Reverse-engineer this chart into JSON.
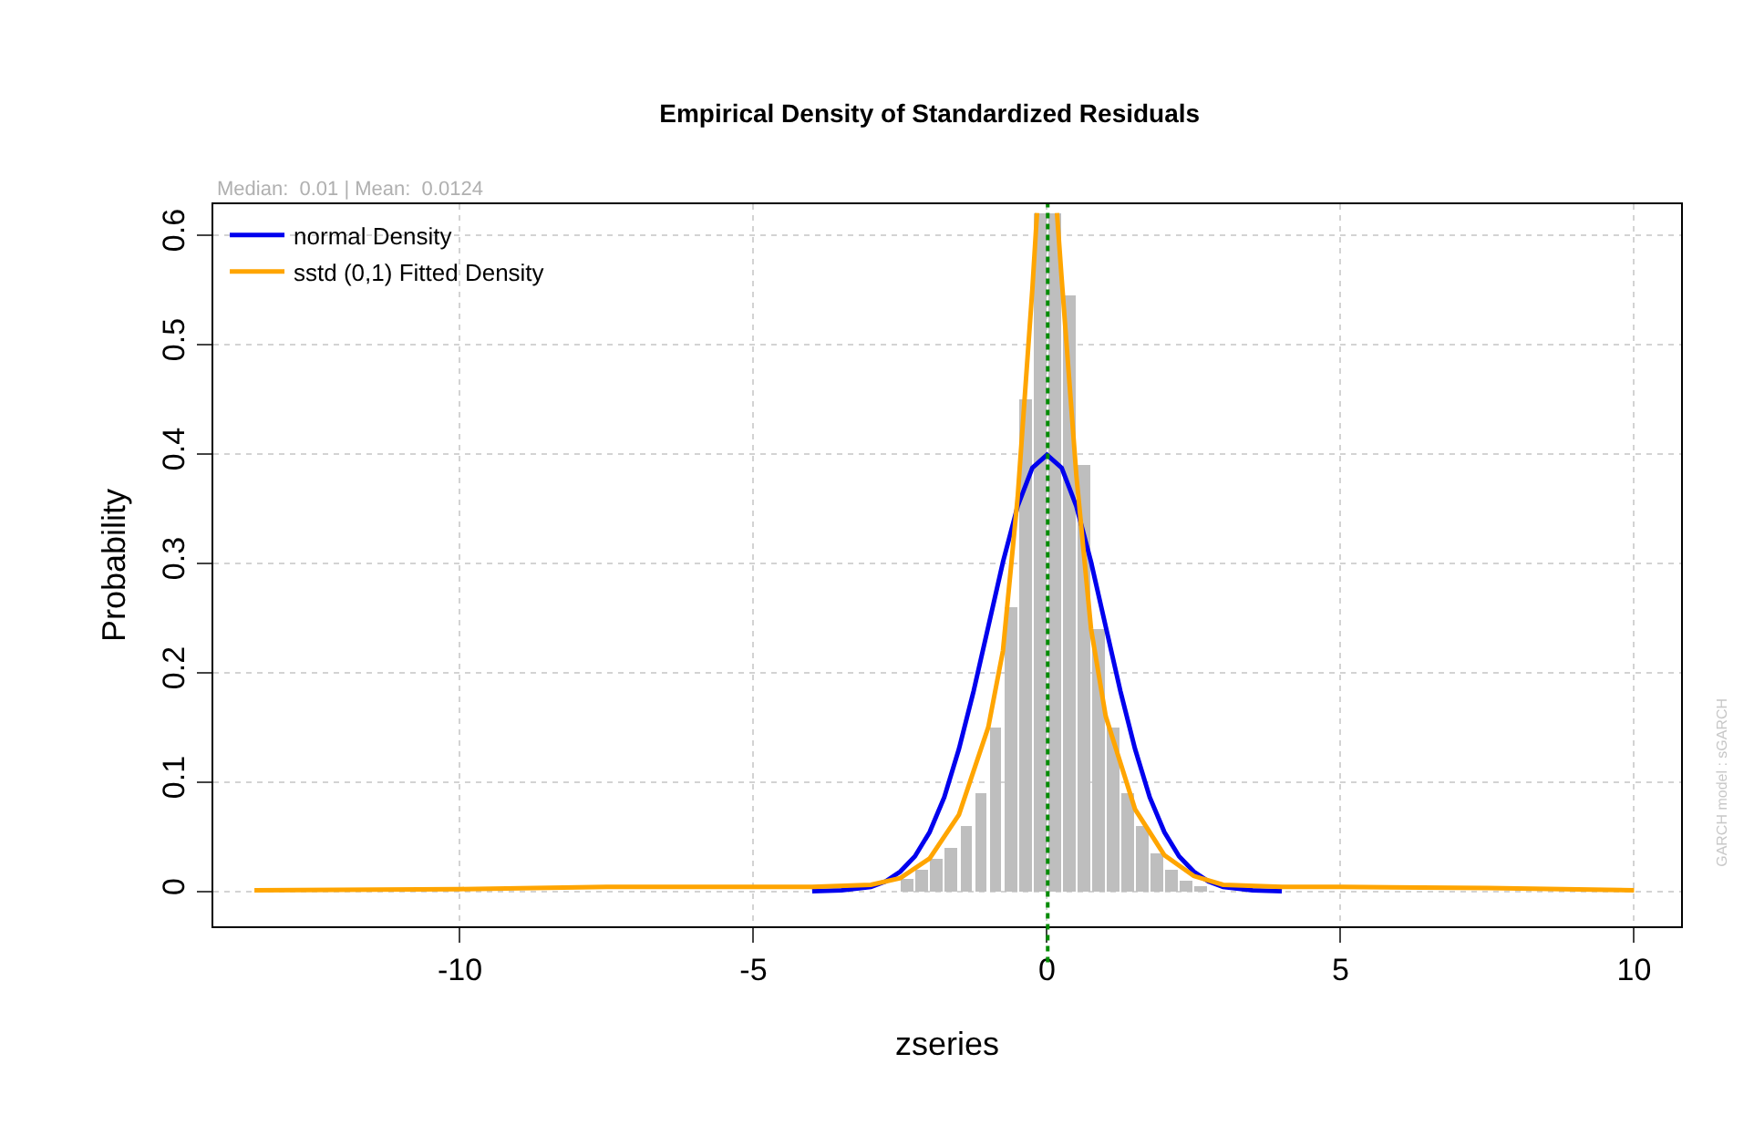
{
  "chart_data": {
    "type": "histogram",
    "title": "Empirical Density of Standardized Residuals",
    "xlabel": "zseries",
    "ylabel": "Probability",
    "bins": [
      -2.5,
      -2.25,
      -2,
      -1.75,
      -1.5,
      -1.25,
      -1,
      -0.75,
      -0.5,
      -0.25,
      0,
      0.25,
      0.5,
      0.75,
      1,
      1.25,
      1.5,
      1.75,
      2,
      2.25,
      2.5,
      2.75
    ],
    "values": [
      0.012,
      0.02,
      0.03,
      0.04,
      0.06,
      0.09,
      0.15,
      0.26,
      0.45,
      0.62,
      0.62,
      0.545,
      0.39,
      0.24,
      0.15,
      0.09,
      0.06,
      0.035,
      0.02,
      0.01,
      0.005
    ],
    "color": "#bebebe",
    "series": [
      {
        "type": "line",
        "name": "normal Density",
        "color": "#0000ee",
        "x": [
          -4,
          -3.5,
          -3,
          -2.75,
          -2.5,
          -2.25,
          -2,
          -1.75,
          -1.5,
          -1.25,
          -1,
          -0.75,
          -0.5,
          -0.25,
          0,
          0.25,
          0.5,
          0.75,
          1,
          1.25,
          1.5,
          1.75,
          2,
          2.25,
          2.5,
          2.75,
          3,
          3.5,
          4
        ],
        "values": [
          0,
          0.001,
          0.004,
          0.009,
          0.018,
          0.032,
          0.054,
          0.086,
          0.13,
          0.183,
          0.242,
          0.301,
          0.352,
          0.387,
          0.399,
          0.387,
          0.352,
          0.301,
          0.242,
          0.183,
          0.13,
          0.086,
          0.054,
          0.032,
          0.018,
          0.009,
          0.004,
          0.001,
          0
        ]
      },
      {
        "type": "line",
        "name": "sstd (0,1) Fitted Density",
        "color": "#ffa500",
        "x": [
          -13.5,
          -10,
          -7.5,
          -5,
          -4,
          -3,
          -2.5,
          -2,
          -1.5,
          -1,
          -0.75,
          -0.5,
          -0.25,
          -0.17,
          0,
          0.17,
          0.25,
          0.5,
          0.75,
          1,
          1.5,
          2,
          2.5,
          3,
          4,
          5,
          7.5,
          10
        ],
        "values": [
          0.001,
          0.002,
          0.004,
          0.004,
          0.004,
          0.006,
          0.012,
          0.03,
          0.07,
          0.15,
          0.22,
          0.36,
          0.55,
          0.62,
          null,
          0.62,
          0.56,
          0.38,
          0.24,
          0.16,
          0.075,
          0.033,
          0.014,
          0.006,
          0.004,
          0.004,
          0.003,
          0.001
        ]
      }
    ],
    "xlim": [
      -14.2,
      10.8
    ],
    "ylim": [
      -0.032,
      0.628
    ],
    "xticks": [
      -10,
      -5,
      0,
      5,
      10
    ],
    "yticks": [
      0,
      0.1,
      0.2,
      0.3,
      0.4,
      0.5,
      0.6
    ],
    "grid": true,
    "legend": "top left",
    "ref_lines": [
      {
        "axis": "x",
        "value": 0.0124,
        "color": "#008b00",
        "line_style": "dotted"
      }
    ],
    "annotations": [
      "Median:  0.01 | Mean:  0.0124",
      "GARCH model : sGARCH"
    ]
  }
}
